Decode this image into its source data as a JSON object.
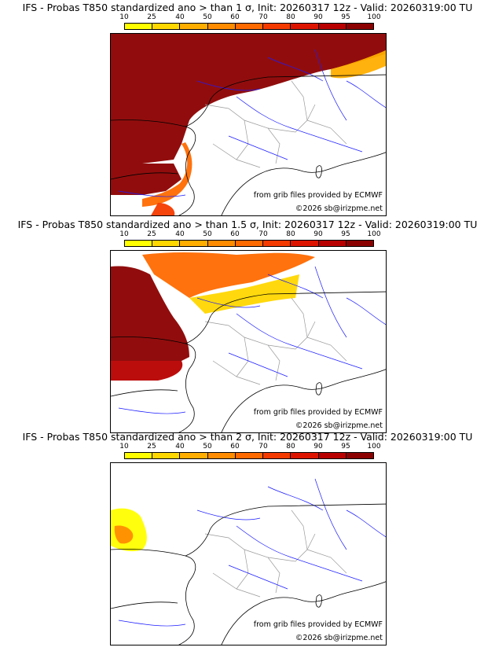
{
  "colors": {
    "scale": [
      "#ffff00",
      "#ffd700",
      "#ffae00",
      "#ff8c00",
      "#ff6a00",
      "#f53a00",
      "#dd1500",
      "#b80000",
      "#8b0000"
    ],
    "coast": "#000000",
    "rivers": "#1a1aff",
    "borders": "#9a9a9a"
  },
  "colorbar": {
    "ticks": [
      "10",
      "25",
      "40",
      "50",
      "60",
      "70",
      "80",
      "90",
      "95",
      "100"
    ]
  },
  "panels": [
    {
      "title": "IFS - Probas T850  standardized ano > than 1 σ, Init: 20260317 12z - Valid: 20260319:00 TU",
      "source_credit": "from grib files provided by ECMWF",
      "copyright": "©2026 sb@irizpme.net",
      "level": 3
    },
    {
      "title": "IFS - Probas T850  standardized ano > than 1.5 σ, Init: 20260317 12z - Valid: 20260319:00 TU",
      "source_credit": "from grib files provided by ECMWF",
      "copyright": "©2026 sb@irizpme.net",
      "level": 2
    },
    {
      "title": "IFS - Probas T850  standardized ano > than 2 σ, Init: 20260317 12z - Valid: 20260319:00 TU",
      "source_credit": "from grib files provided by ECMWF",
      "copyright": "©2026 sb@irizpme.net",
      "level": 1
    }
  ]
}
